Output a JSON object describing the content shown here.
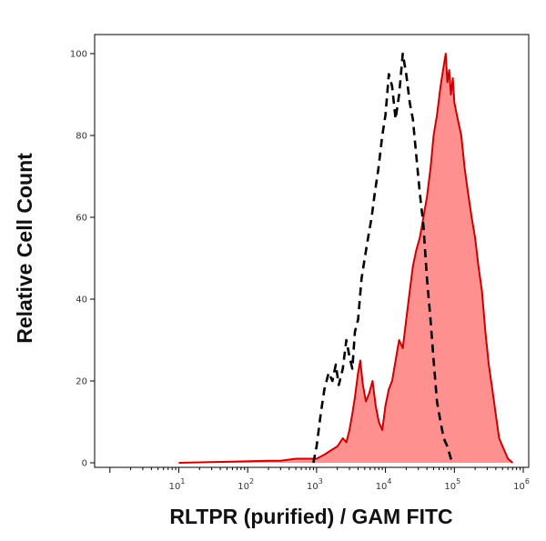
{
  "chart_data": {
    "type": "area",
    "title": "",
    "xlabel": "RLTPR (purified) / GAM FITC",
    "ylabel": "Relative Cell Count",
    "xscale": "log",
    "xlim": [
      0.6,
      1200000
    ],
    "ylim": [
      0,
      105
    ],
    "x_ticks": [
      {
        "base": "10",
        "exp": "1",
        "value": 10
      },
      {
        "base": "10",
        "exp": "2",
        "value": 100
      },
      {
        "base": "10",
        "exp": "3",
        "value": 1000
      },
      {
        "base": "10",
        "exp": "4",
        "value": 10000
      },
      {
        "base": "10",
        "exp": "5",
        "value": 100000
      },
      {
        "base": "10",
        "exp": "6",
        "value": 1000000
      }
    ],
    "y_ticks": [
      "0",
      "20",
      "40",
      "60",
      "80",
      "100"
    ],
    "grid": false,
    "series": [
      {
        "line_style": "dashed",
        "color": "#000000",
        "fill": "none",
        "x": [
          900,
          1000,
          1150,
          1300,
          1500,
          1700,
          1900,
          2100,
          2400,
          2700,
          3000,
          3300,
          3600,
          4000,
          4500,
          5000,
          5600,
          6300,
          7000,
          7900,
          9000,
          10000,
          11200,
          12500,
          14000,
          15800,
          17800,
          20000,
          22500,
          25000,
          28000,
          31500,
          35500,
          40000,
          45000,
          50000,
          56000,
          63000,
          70000,
          79000,
          89000,
          100000
        ],
        "y": [
          0,
          4,
          12,
          18,
          22,
          20,
          24,
          19,
          23,
          30,
          26,
          23,
          32,
          35,
          45,
          50,
          55,
          60,
          66,
          72,
          80,
          85,
          95,
          92,
          84,
          90,
          100,
          95,
          88,
          84,
          75,
          66,
          58,
          45,
          35,
          25,
          15,
          10,
          6,
          4,
          1,
          0
        ]
      },
      {
        "line_style": "solid",
        "color": "#cc0000",
        "fill": "#ff9090",
        "x": [
          10,
          200,
          300,
          500,
          800,
          1000,
          1300,
          1600,
          2000,
          2400,
          2700,
          3000,
          3300,
          3600,
          4000,
          4300,
          4700,
          5200,
          5800,
          6500,
          7200,
          8000,
          9000,
          10000,
          11200,
          12500,
          14000,
          15800,
          17800,
          20000,
          22500,
          25000,
          28000,
          31500,
          35500,
          40000,
          45000,
          50000,
          56000,
          63000,
          70000,
          75000,
          79000,
          84000,
          89000,
          95000,
          100000,
          112000,
          126000,
          141000,
          158000,
          178000,
          200000,
          224000,
          251000,
          282000,
          316000,
          355000,
          398000,
          447000,
          501000,
          600000,
          700000
        ],
        "y": [
          0,
          0.5,
          0.5,
          1,
          1,
          1,
          2,
          3,
          4,
          6,
          5,
          8,
          12,
          16,
          22,
          25,
          19,
          15,
          17,
          20,
          14,
          10,
          8,
          14,
          18,
          20,
          25,
          30,
          28,
          35,
          42,
          48,
          52,
          55,
          60,
          65,
          72,
          80,
          85,
          92,
          97,
          100,
          93,
          96,
          90,
          94,
          88,
          84,
          80,
          72,
          66,
          60,
          55,
          48,
          42,
          32,
          24,
          18,
          12,
          6,
          4,
          1,
          0
        ]
      }
    ]
  }
}
